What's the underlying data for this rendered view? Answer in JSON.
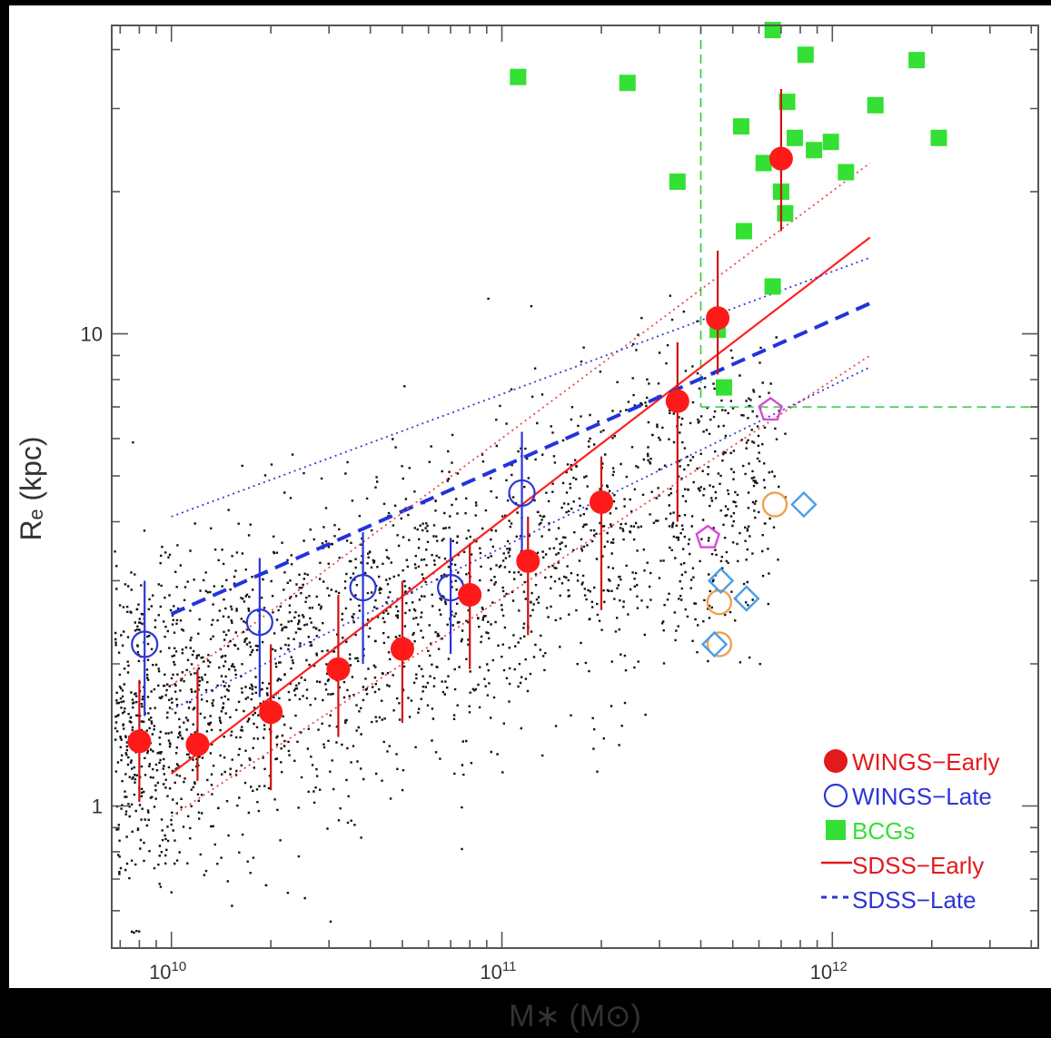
{
  "chart_data": {
    "type": "scatter",
    "title": "",
    "xlabel": "M∗ (M⊙)",
    "ylabel": "Rₑ (kpc)",
    "xscale": "log",
    "yscale": "log",
    "xlim": [
      6600000000.0,
      4200000000000.0
    ],
    "ylim": [
      0.5,
      45
    ],
    "x_tick_labels": [
      {
        "value": 10000000000.0,
        "base": "10",
        "exp": "10"
      },
      {
        "value": 100000000000.0,
        "base": "10",
        "exp": "11"
      },
      {
        "value": 1000000000000.0,
        "base": "10",
        "exp": "12"
      }
    ],
    "y_tick_labels": [
      {
        "value": 1,
        "label": "1"
      },
      {
        "value": 10,
        "label": "10"
      }
    ],
    "legend_position": "bottom-right",
    "legend": [
      {
        "label": "WINGS−Early",
        "color": "#e31a1c",
        "marker": "filled-circle"
      },
      {
        "label": "WINGS−Late",
        "color": "#2b35d6",
        "marker": "open-circle"
      },
      {
        "label": "BCGs",
        "color": "#33e033",
        "marker": "filled-square"
      },
      {
        "label": "SDSS−Early",
        "color": "#e31a1c",
        "marker": "solid-line"
      },
      {
        "label": "SDSS−Late",
        "color": "#2b35d6",
        "marker": "dashed-line"
      }
    ],
    "series": [
      {
        "name": "WINGS−Early",
        "color": "#ff1a1a",
        "points": [
          {
            "x": 8000000000.0,
            "y": 1.37,
            "ylo": 1.02,
            "yhi": 1.85
          },
          {
            "x": 12000000000.0,
            "y": 1.35,
            "ylo": 1.13,
            "yhi": 1.95
          },
          {
            "x": 20000000000.0,
            "y": 1.58,
            "ylo": 1.08,
            "yhi": 2.2
          },
          {
            "x": 32000000000.0,
            "y": 1.95,
            "ylo": 1.4,
            "yhi": 2.8
          },
          {
            "x": 50000000000.0,
            "y": 2.15,
            "ylo": 1.5,
            "yhi": 3.0
          },
          {
            "x": 80000000000.0,
            "y": 2.8,
            "ylo": 1.95,
            "yhi": 3.6
          },
          {
            "x": 120000000000.0,
            "y": 3.3,
            "ylo": 2.3,
            "yhi": 4.1
          },
          {
            "x": 200000000000.0,
            "y": 4.4,
            "ylo": 2.6,
            "yhi": 5.5
          },
          {
            "x": 340000000000.0,
            "y": 7.2,
            "ylo": 4.0,
            "yhi": 9.6
          },
          {
            "x": 450000000000.0,
            "y": 10.8,
            "ylo": 8.2,
            "yhi": 15.0
          },
          {
            "x": 700000000000.0,
            "y": 23.5,
            "ylo": 16.5,
            "yhi": 33.0
          }
        ]
      },
      {
        "name": "WINGS−Late",
        "color": "#2b35d6",
        "points": [
          {
            "x": 8300000000.0,
            "y": 2.2,
            "ylo": 1.55,
            "yhi": 3.0
          },
          {
            "x": 18500000000.0,
            "y": 2.45,
            "ylo": 1.7,
            "yhi": 3.35
          },
          {
            "x": 38000000000.0,
            "y": 2.9,
            "ylo": 2.0,
            "yhi": 3.8
          },
          {
            "x": 70000000000.0,
            "y": 2.9,
            "ylo": 2.1,
            "yhi": 3.7
          },
          {
            "x": 115000000000.0,
            "y": 4.6,
            "ylo": 3.2,
            "yhi": 6.2
          }
        ]
      },
      {
        "name": "BCGs",
        "color": "#33e033",
        "points": [
          {
            "x": 112000000000.0,
            "y": 35.0
          },
          {
            "x": 240000000000.0,
            "y": 34.0
          },
          {
            "x": 340000000000.0,
            "y": 21.0
          },
          {
            "x": 450000000000.0,
            "y": 10.2
          },
          {
            "x": 470000000000.0,
            "y": 7.7
          },
          {
            "x": 530000000000.0,
            "y": 27.5
          },
          {
            "x": 540000000000.0,
            "y": 16.5
          },
          {
            "x": 620000000000.0,
            "y": 23.0
          },
          {
            "x": 660000000000.0,
            "y": 44.0
          },
          {
            "x": 660000000000.0,
            "y": 12.6
          },
          {
            "x": 700000000000.0,
            "y": 20.0
          },
          {
            "x": 720000000000.0,
            "y": 18.0
          },
          {
            "x": 730000000000.0,
            "y": 31.0
          },
          {
            "x": 770000000000.0,
            "y": 26.0
          },
          {
            "x": 830000000000.0,
            "y": 39.0
          },
          {
            "x": 880000000000.0,
            "y": 24.5
          },
          {
            "x": 990000000000.0,
            "y": 25.5
          },
          {
            "x": 1100000000000.0,
            "y": 22.0
          },
          {
            "x": 1350000000000.0,
            "y": 30.5
          },
          {
            "x": 1800000000000.0,
            "y": 38.0
          },
          {
            "x": 2100000000000.0,
            "y": 26.0
          }
        ]
      },
      {
        "name": "orange-open-circles",
        "color": "#f0a050",
        "marker": "open-circle",
        "points": [
          {
            "x": 670000000000.0,
            "y": 4.35
          },
          {
            "x": 455000000000.0,
            "y": 2.7
          },
          {
            "x": 455000000000.0,
            "y": 2.2
          }
        ]
      },
      {
        "name": "light-blue-diamonds",
        "color": "#4a9ee8",
        "marker": "open-diamond",
        "points": [
          {
            "x": 820000000000.0,
            "y": 4.35
          },
          {
            "x": 460000000000.0,
            "y": 3.0
          },
          {
            "x": 550000000000.0,
            "y": 2.75
          },
          {
            "x": 440000000000.0,
            "y": 2.2
          }
        ]
      },
      {
        "name": "magenta-pentagons",
        "color": "#d84ad8",
        "marker": "open-pentagon",
        "points": [
          {
            "x": 650000000000.0,
            "y": 6.9
          },
          {
            "x": 420000000000.0,
            "y": 3.7
          }
        ]
      }
    ],
    "lines": [
      {
        "name": "SDSS−Early",
        "color": "#ff2020",
        "style": "solid",
        "x": [
          10000000000.0,
          1300000000000.0
        ],
        "y": [
          1.17,
          16.0
        ]
      },
      {
        "name": "SDSS−Late",
        "color": "#2233dd",
        "style": "dashed",
        "x": [
          10000000000.0,
          1300000000000.0
        ],
        "y": [
          2.55,
          11.6
        ]
      },
      {
        "name": "sdss-early-upper",
        "color": "#e84a4a",
        "style": "dotted",
        "x": [
          10000000000.0,
          1300000000000.0
        ],
        "y": [
          1.8,
          23.0
        ]
      },
      {
        "name": "sdss-early-lower",
        "color": "#e84a4a",
        "style": "dotted",
        "x": [
          10000000000.0,
          1300000000000.0
        ],
        "y": [
          0.95,
          9.0
        ]
      },
      {
        "name": "sdss-late-upper",
        "color": "#3a3ad8",
        "style": "dotted",
        "x": [
          10000000000.0,
          1300000000000.0
        ],
        "y": [
          4.1,
          14.5
        ]
      },
      {
        "name": "sdss-late-lower",
        "color": "#3a3ad8",
        "style": "dotted",
        "x": [
          10000000000.0,
          1300000000000.0
        ],
        "y": [
          1.6,
          8.5
        ]
      }
    ],
    "bcg_region": {
      "color": "#33cc33",
      "x_min": 400000000000.0,
      "y_min": 7.0
    }
  }
}
